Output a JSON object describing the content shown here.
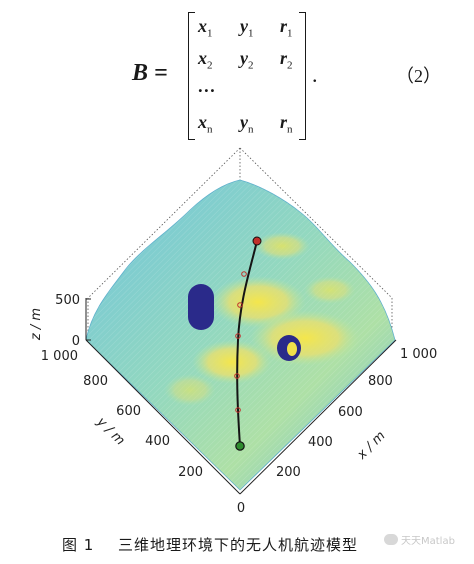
{
  "equation": {
    "lhs": "B =",
    "rows": [
      [
        "x",
        "1",
        "y",
        "1",
        "r",
        "1"
      ],
      [
        "x",
        "2",
        "y",
        "2",
        "r",
        "2"
      ],
      [
        "…",
        "",
        "",
        "",
        "",
        ""
      ],
      [
        "x",
        "n",
        "y",
        "n",
        "r",
        "n"
      ]
    ],
    "period": ".",
    "number": "（2）"
  },
  "figure": {
    "axes": {
      "z_label": "z / m",
      "y_label": "y / m",
      "x_label": "x / m",
      "z_ticks": [
        "500",
        "0"
      ],
      "y_ticks": [
        "1 000",
        "800",
        "600",
        "400",
        "200",
        "0"
      ],
      "x_ticks": [
        "1 000",
        "800",
        "600",
        "400",
        "200"
      ]
    },
    "colors": {
      "low": "#5fb8d8",
      "mid": "#8fd6b0",
      "high": "#f0e04a",
      "obstacle": "#2a2a8a",
      "start": "#2e8b2e",
      "goal": "#c0302a"
    }
  },
  "caption": {
    "label": "图 1",
    "text": "三维地理环境下的无人机航迹模型"
  },
  "watermark": {
    "text": "天天Matlab"
  }
}
